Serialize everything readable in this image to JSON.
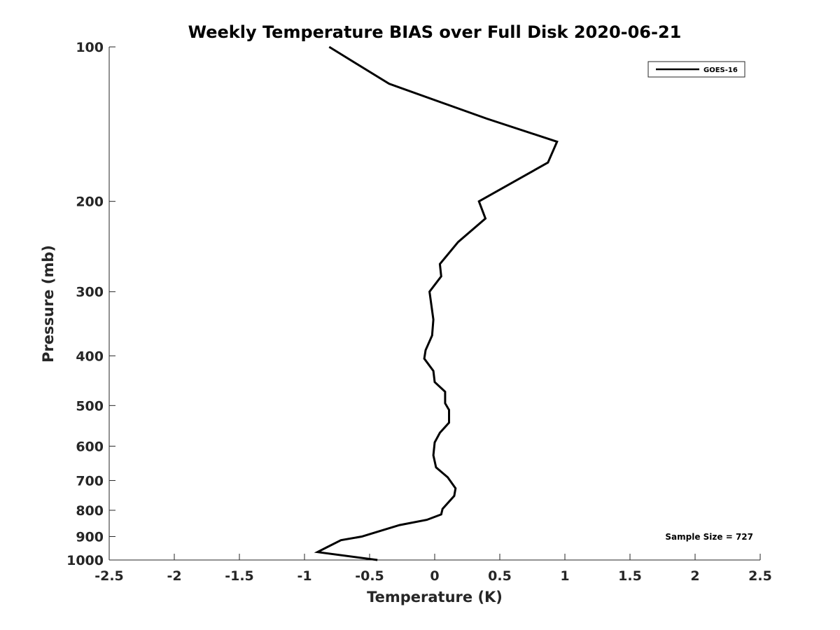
{
  "chart_data": {
    "type": "line",
    "title": "Weekly Temperature BIAS over Full Disk 2020-06-21",
    "xlabel": "Temperature (K)",
    "ylabel": "Pressure (mb)",
    "xlim": [
      -2.5,
      2.5
    ],
    "ylim": [
      100,
      1000
    ],
    "y_scale": "log",
    "y_reversed": true,
    "grid": false,
    "x_ticks": [
      -2.5,
      -2,
      -1.5,
      -1,
      -0.5,
      0,
      0.5,
      1,
      1.5,
      2,
      2.5
    ],
    "x_tick_labels": [
      "-2.5",
      "-2",
      "-1.5",
      "-1",
      "-0.5",
      "0",
      "0.5",
      "1",
      "1.5",
      "2",
      "2.5"
    ],
    "y_ticks": [
      100,
      200,
      300,
      400,
      500,
      600,
      700,
      800,
      900,
      1000
    ],
    "y_tick_labels": [
      "100",
      "200",
      "300",
      "400",
      "500",
      "600",
      "700",
      "800",
      "900",
      "1000"
    ],
    "legend_position": "top-right",
    "annotation": "Sample Size = 727",
    "series": [
      {
        "name": "GOES-16",
        "color": "#000000",
        "points": [
          {
            "x": -0.81,
            "p": 100
          },
          {
            "x": -0.35,
            "p": 118
          },
          {
            "x": 0.4,
            "p": 138
          },
          {
            "x": 0.94,
            "p": 153
          },
          {
            "x": 0.87,
            "p": 168
          },
          {
            "x": 0.34,
            "p": 200
          },
          {
            "x": 0.39,
            "p": 216
          },
          {
            "x": 0.18,
            "p": 240
          },
          {
            "x": 0.04,
            "p": 265
          },
          {
            "x": 0.05,
            "p": 280
          },
          {
            "x": -0.04,
            "p": 300
          },
          {
            "x": -0.01,
            "p": 340
          },
          {
            "x": -0.02,
            "p": 365
          },
          {
            "x": -0.07,
            "p": 390
          },
          {
            "x": -0.08,
            "p": 405
          },
          {
            "x": -0.01,
            "p": 428
          },
          {
            "x": 0.0,
            "p": 450
          },
          {
            "x": 0.08,
            "p": 470
          },
          {
            "x": 0.08,
            "p": 495
          },
          {
            "x": 0.11,
            "p": 510
          },
          {
            "x": 0.11,
            "p": 540
          },
          {
            "x": 0.04,
            "p": 565
          },
          {
            "x": 0.0,
            "p": 590
          },
          {
            "x": -0.01,
            "p": 625
          },
          {
            "x": 0.01,
            "p": 660
          },
          {
            "x": 0.1,
            "p": 690
          },
          {
            "x": 0.16,
            "p": 725
          },
          {
            "x": 0.15,
            "p": 750
          },
          {
            "x": 0.06,
            "p": 795
          },
          {
            "x": 0.05,
            "p": 815
          },
          {
            "x": -0.06,
            "p": 835
          },
          {
            "x": -0.27,
            "p": 855
          },
          {
            "x": -0.56,
            "p": 900
          },
          {
            "x": -0.72,
            "p": 915
          },
          {
            "x": -0.83,
            "p": 945
          },
          {
            "x": -0.9,
            "p": 965
          },
          {
            "x": -0.44,
            "p": 1000
          }
        ]
      }
    ]
  }
}
